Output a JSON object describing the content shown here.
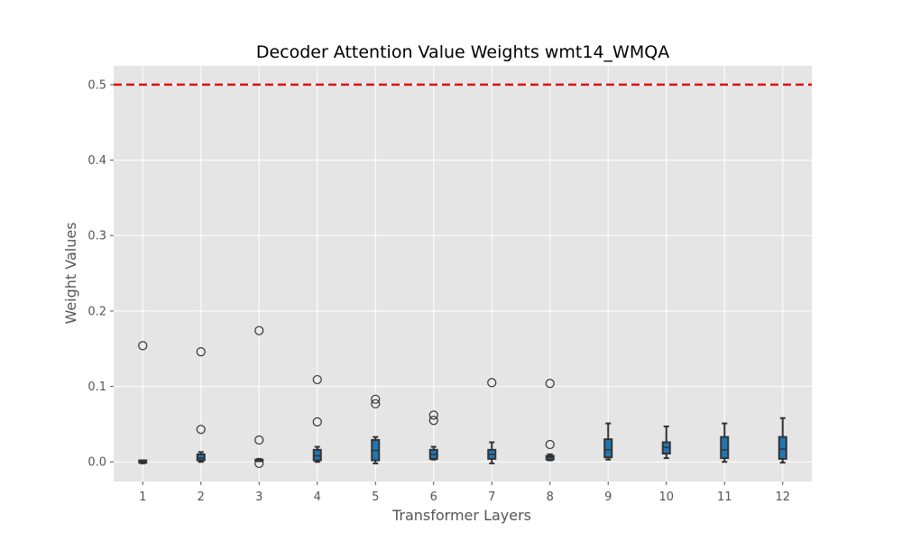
{
  "chart_data": {
    "type": "box",
    "title": "Decoder Attention Value Weights wmt14_WMQA",
    "xlabel": "Transformer Layers",
    "ylabel": "Weight Values",
    "ylim": [
      -0.026,
      0.525
    ],
    "yticks": [
      0.0,
      0.1,
      0.2,
      0.3,
      0.4,
      0.5
    ],
    "ytick_labels": [
      "0.0",
      "0.1",
      "0.2",
      "0.3",
      "0.4",
      "0.5"
    ],
    "categories": [
      "1",
      "2",
      "3",
      "4",
      "5",
      "6",
      "7",
      "8",
      "9",
      "10",
      "11",
      "12"
    ],
    "reference_line": {
      "y": 0.5,
      "color": "#dd1111",
      "style": "dashed"
    },
    "grid": true,
    "background": "#e5e5e5",
    "box_color": "#1f77b4",
    "edge_color": "#333333",
    "boxes": [
      {
        "layer": "1",
        "whislo": -0.002,
        "q1": -0.001,
        "med": 0.0,
        "q3": 0.002,
        "whishi": 0.002,
        "fliers": [
          0.154
        ]
      },
      {
        "layer": "2",
        "whislo": 0.0,
        "q1": 0.002,
        "med": 0.005,
        "q3": 0.01,
        "whishi": 0.013,
        "fliers": [
          0.146,
          0.043
        ]
      },
      {
        "layer": "3",
        "whislo": 0.001,
        "q1": 0.001,
        "med": 0.002,
        "q3": 0.003,
        "whishi": 0.004,
        "fliers": [
          0.174,
          0.029,
          -0.002
        ]
      },
      {
        "layer": "4",
        "whislo": 0.0,
        "q1": 0.002,
        "med": 0.008,
        "q3": 0.016,
        "whishi": 0.02,
        "fliers": [
          0.109,
          0.053
        ]
      },
      {
        "layer": "5",
        "whislo": -0.002,
        "q1": 0.002,
        "med": 0.015,
        "q3": 0.029,
        "whishi": 0.033,
        "fliers": [
          0.083,
          0.077
        ]
      },
      {
        "layer": "6",
        "whislo": 0.003,
        "q1": 0.004,
        "med": 0.01,
        "q3": 0.016,
        "whishi": 0.02,
        "fliers": [
          0.062,
          0.055
        ]
      },
      {
        "layer": "7",
        "whislo": -0.002,
        "q1": 0.004,
        "med": 0.01,
        "q3": 0.016,
        "whishi": 0.026,
        "fliers": [
          0.105
        ]
      },
      {
        "layer": "8",
        "whislo": 0.002,
        "q1": 0.003,
        "med": 0.006,
        "q3": 0.008,
        "whishi": 0.01,
        "fliers": [
          0.104,
          0.023
        ]
      },
      {
        "layer": "9",
        "whislo": 0.003,
        "q1": 0.006,
        "med": 0.016,
        "q3": 0.03,
        "whishi": 0.051,
        "fliers": []
      },
      {
        "layer": "10",
        "whislo": 0.005,
        "q1": 0.011,
        "med": 0.019,
        "q3": 0.026,
        "whishi": 0.047,
        "fliers": []
      },
      {
        "layer": "11",
        "whislo": 0.0,
        "q1": 0.005,
        "med": 0.016,
        "q3": 0.033,
        "whishi": 0.051,
        "fliers": []
      },
      {
        "layer": "12",
        "whislo": -0.001,
        "q1": 0.004,
        "med": 0.017,
        "q3": 0.033,
        "whishi": 0.058,
        "fliers": []
      }
    ]
  }
}
